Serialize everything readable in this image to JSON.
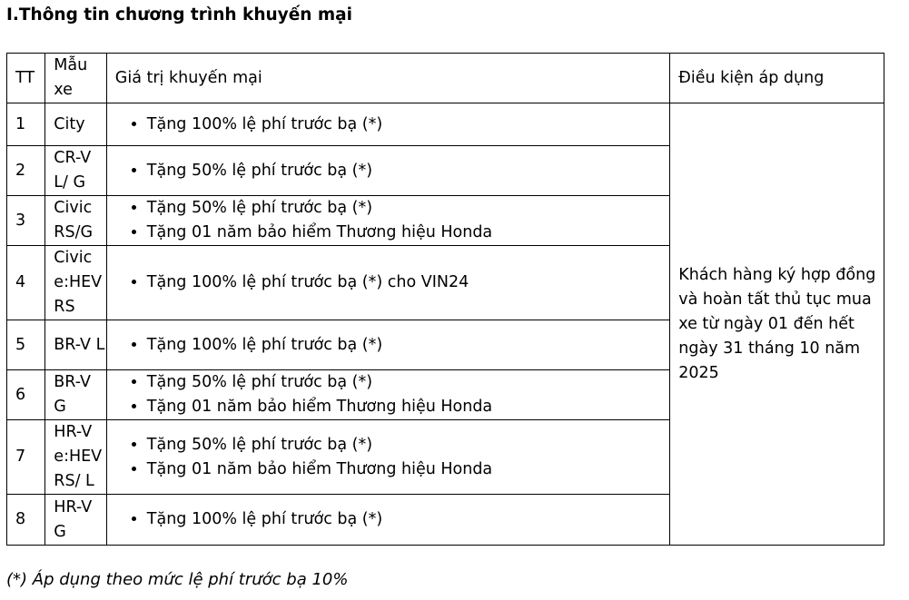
{
  "title": "I.Thông tin chương trình khuyến mại",
  "table": {
    "headers": [
      "TT",
      "Mẫu xe",
      "Giá trị khuyến mại",
      "Điều kiện áp dụng"
    ],
    "condition": "Khách hàng ký hợp đồng và hoàn tất thủ tục mua xe từ ngày 01 đến hết ngày 31 tháng 10 năm 2025",
    "rows": [
      {
        "tt": "1",
        "model": "City",
        "promos": [
          "Tặng 100% lệ phí trước bạ (*)"
        ]
      },
      {
        "tt": "2",
        "model": "CR-V L/ G",
        "promos": [
          "Tặng 50% lệ phí trước bạ (*)"
        ]
      },
      {
        "tt": "3",
        "model": "Civic RS/G",
        "promos": [
          "Tặng 50% lệ phí trước bạ (*)",
          "Tặng 01 năm bảo hiểm Thương hiệu Honda"
        ]
      },
      {
        "tt": "4",
        "model": "Civic e:HEV RS",
        "promos": [
          "Tặng 100% lệ phí trước bạ (*) cho VIN24"
        ]
      },
      {
        "tt": "5",
        "model": "BR-V L",
        "promos": [
          "Tặng 100% lệ phí trước bạ (*)"
        ]
      },
      {
        "tt": "6",
        "model": "BR-V G",
        "promos": [
          "Tặng 50% lệ phí trước bạ (*)",
          "Tặng 01 năm bảo hiểm Thương hiệu Honda"
        ]
      },
      {
        "tt": "7",
        "model": "HR-V e:HEV RS/ L",
        "promos": [
          "Tặng 50% lệ phí trước bạ (*)",
          "Tặng 01 năm bảo hiểm Thương hiệu Honda"
        ]
      },
      {
        "tt": "8",
        "model": "HR-V G",
        "promos": [
          "Tặng 100% lệ phí trước bạ (*)"
        ]
      }
    ]
  },
  "footnote": "(*) Áp dụng theo mức lệ phí trước bạ 10%"
}
